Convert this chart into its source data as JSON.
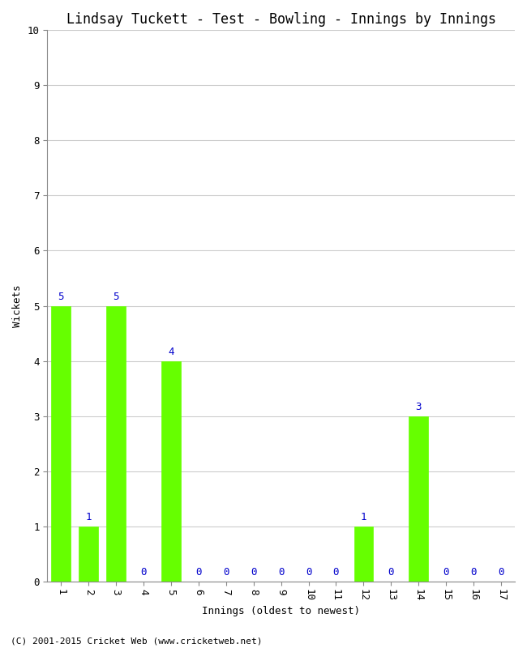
{
  "title": "Lindsay Tuckett - Test - Bowling - Innings by Innings",
  "xlabel": "Innings (oldest to newest)",
  "ylabel": "Wickets",
  "categories": [
    1,
    2,
    3,
    4,
    5,
    6,
    7,
    8,
    9,
    10,
    11,
    12,
    13,
    14,
    15,
    16,
    17
  ],
  "values": [
    5,
    1,
    5,
    0,
    4,
    0,
    0,
    0,
    0,
    0,
    0,
    1,
    0,
    3,
    0,
    0,
    0
  ],
  "bar_color": "#66ff00",
  "bar_edge_color": "#66ff00",
  "label_color": "#0000cc",
  "ylim": [
    0,
    10
  ],
  "yticks": [
    0,
    1,
    2,
    3,
    4,
    5,
    6,
    7,
    8,
    9,
    10
  ],
  "grid_color": "#cccccc",
  "background_color": "#ffffff",
  "footer": "(C) 2001-2015 Cricket Web (www.cricketweb.net)",
  "title_fontsize": 12,
  "label_fontsize": 9,
  "tick_fontsize": 9,
  "footer_fontsize": 8,
  "bar_label_fontsize": 9
}
